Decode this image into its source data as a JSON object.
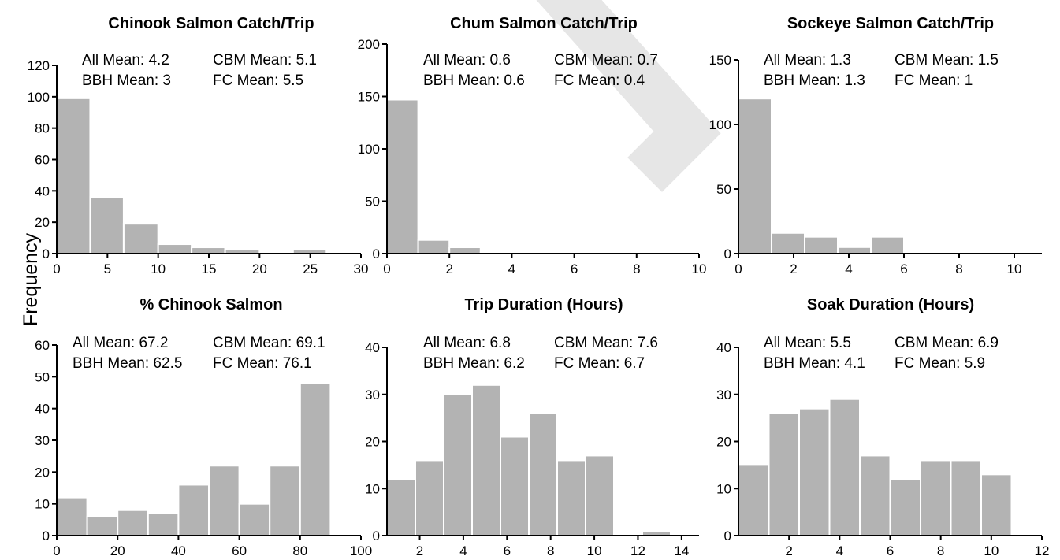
{
  "figure": {
    "ylabel": "Frequency"
  },
  "chart_data": [
    {
      "type": "bar",
      "title": "Chinook Salmon Catch/Trip",
      "annotations": [
        "All Mean: 4.2",
        "CBM Mean: 5.1",
        "BBH Mean: 3",
        "FC Mean: 5.5"
      ],
      "bins": [
        [
          0,
          3.3
        ],
        [
          3.3,
          6.6
        ],
        [
          6.6,
          10
        ],
        [
          10,
          13.3
        ],
        [
          13.3,
          16.6
        ],
        [
          16.6,
          20
        ],
        [
          20,
          23.3
        ],
        [
          23.3,
          26.6
        ]
      ],
      "values": [
        99,
        36,
        19,
        6,
        4,
        3,
        0,
        3
      ],
      "xlim": [
        0,
        30
      ],
      "ylim": [
        0,
        120
      ],
      "xticks": [
        0,
        5,
        10,
        15,
        20,
        25,
        30
      ],
      "yticks": [
        0,
        20,
        40,
        60,
        80,
        100,
        120
      ]
    },
    {
      "type": "bar",
      "title": "Chum Salmon Catch/Trip",
      "annotations": [
        "All Mean: 0.6",
        "CBM Mean: 0.7",
        "BBH Mean: 0.6",
        "FC Mean: 0.4"
      ],
      "bins": [
        [
          0,
          1
        ],
        [
          1,
          2
        ],
        [
          2,
          3
        ],
        [
          3,
          4
        ],
        [
          4,
          5
        ],
        [
          5,
          6
        ]
      ],
      "values": [
        147,
        13,
        6,
        1,
        1,
        1
      ],
      "xlim": [
        0,
        10
      ],
      "ylim": [
        0,
        200
      ],
      "xticks": [
        0,
        2,
        4,
        6,
        8,
        10
      ],
      "yticks": [
        0,
        50,
        100,
        150,
        200
      ]
    },
    {
      "type": "bar",
      "title": "Sockeye Salmon Catch/Trip",
      "annotations": [
        "All Mean: 1.3",
        "CBM Mean: 1.5",
        "BBH Mean: 1.3",
        "FC Mean: 1"
      ],
      "bins": [
        [
          0,
          1.2
        ],
        [
          1.2,
          2.4
        ],
        [
          2.4,
          3.6
        ],
        [
          3.6,
          4.8
        ],
        [
          4.8,
          6
        ],
        [
          6,
          7.2
        ],
        [
          7.2,
          8.4
        ],
        [
          8.4,
          9.6
        ],
        [
          9.6,
          11
        ]
      ],
      "values": [
        120,
        16,
        13,
        5,
        13,
        0,
        0,
        0,
        1
      ],
      "xlim": [
        0,
        11
      ],
      "ylim": [
        0,
        150
      ],
      "xticks": [
        0,
        2,
        4,
        6,
        8,
        10
      ],
      "yticks": [
        0,
        50,
        100,
        150
      ]
    },
    {
      "type": "bar",
      "title": "% Chinook Salmon",
      "annotations": [
        "All Mean: 67.2",
        "CBM Mean: 69.1",
        "BBH Mean: 62.5",
        "FC Mean: 76.1"
      ],
      "bins": [
        [
          0,
          10
        ],
        [
          10,
          20
        ],
        [
          20,
          30
        ],
        [
          30,
          40
        ],
        [
          40,
          50
        ],
        [
          50,
          60
        ],
        [
          60,
          70
        ],
        [
          70,
          80
        ],
        [
          80,
          90
        ],
        [
          90,
          100
        ]
      ],
      "values": [
        12,
        6,
        8,
        7,
        16,
        22,
        10,
        22,
        48,
        0
      ],
      "xlim": [
        0,
        100
      ],
      "ylim": [
        0,
        60
      ],
      "xticks": [
        0,
        20,
        40,
        60,
        80,
        100
      ],
      "yticks": [
        0,
        10,
        20,
        30,
        40,
        50,
        60
      ]
    },
    {
      "type": "bar",
      "title": "Trip Duration (Hours)",
      "annotations": [
        "All Mean: 6.8",
        "CBM Mean: 7.6",
        "BBH Mean: 6.2",
        "FC Mean: 6.7"
      ],
      "bins": [
        [
          0.5,
          1.8
        ],
        [
          1.8,
          3.1
        ],
        [
          3.1,
          4.4
        ],
        [
          4.4,
          5.7
        ],
        [
          5.7,
          7
        ],
        [
          7,
          8.3
        ],
        [
          8.3,
          9.6
        ],
        [
          9.6,
          10.9
        ],
        [
          10.9,
          12.2
        ],
        [
          12.2,
          13.5
        ],
        [
          13.5,
          14.8
        ]
      ],
      "values": [
        12,
        16,
        30,
        32,
        21,
        26,
        16,
        17,
        0,
        1,
        0
      ],
      "xlim": [
        0.5,
        14.8
      ],
      "ylim": [
        0,
        40
      ],
      "xticks": [
        2,
        4,
        6,
        8,
        10,
        12,
        14
      ],
      "yticks": [
        0,
        10,
        20,
        30,
        40
      ]
    },
    {
      "type": "bar",
      "title": "Soak Duration (Hours)",
      "annotations": [
        "All Mean: 5.5",
        "CBM Mean: 6.9",
        "BBH Mean: 4.1",
        "FC Mean: 5.9"
      ],
      "bins": [
        [
          0,
          1.2
        ],
        [
          1.2,
          2.4
        ],
        [
          2.4,
          3.6
        ],
        [
          3.6,
          4.8
        ],
        [
          4.8,
          6
        ],
        [
          6,
          7.2
        ],
        [
          7.2,
          8.4
        ],
        [
          8.4,
          9.6
        ],
        [
          9.6,
          10.8
        ],
        [
          10.8,
          12
        ]
      ],
      "values": [
        15,
        26,
        27,
        29,
        17,
        12,
        16,
        16,
        13,
        0
      ],
      "xlim": [
        0,
        12
      ],
      "ylim": [
        0,
        40
      ],
      "xticks": [
        2,
        4,
        6,
        8,
        10,
        12
      ],
      "yticks": [
        0,
        10,
        20,
        30,
        40
      ]
    }
  ]
}
